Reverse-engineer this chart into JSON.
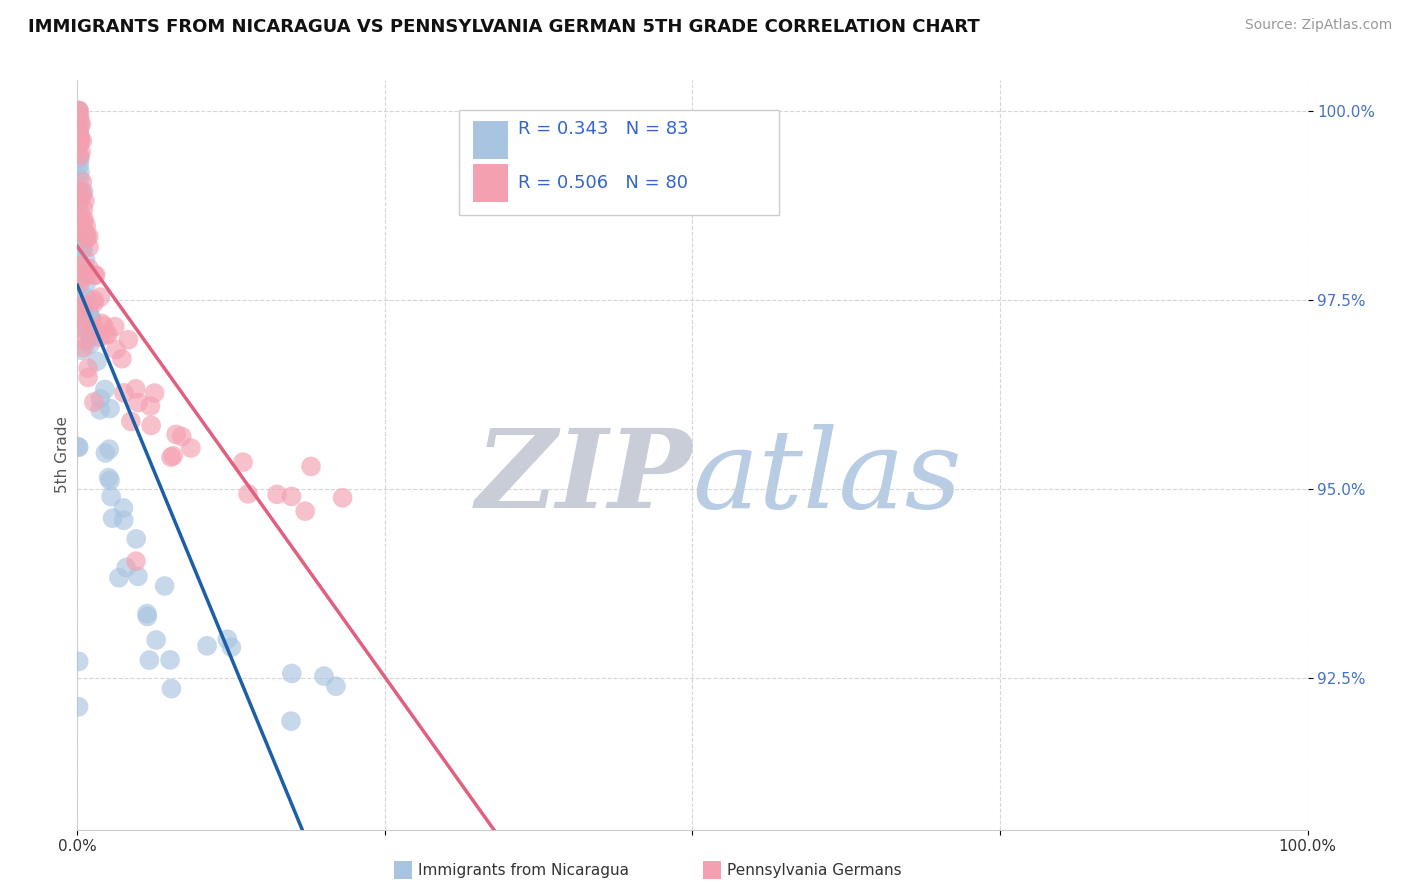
{
  "title": "IMMIGRANTS FROM NICARAGUA VS PENNSYLVANIA GERMAN 5TH GRADE CORRELATION CHART",
  "source": "Source: ZipAtlas.com",
  "ylabel": "5th Grade",
  "xlim": [
    0.0,
    1.0
  ],
  "ylim": [
    0.905,
    1.004
  ],
  "yticks": [
    0.925,
    0.95,
    0.975,
    1.0
  ],
  "ytick_labels": [
    "92.5%",
    "95.0%",
    "97.5%",
    "100.0%"
  ],
  "blue_R": 0.343,
  "blue_N": 83,
  "pink_R": 0.506,
  "pink_N": 80,
  "blue_color": "#a8c4e0",
  "pink_color": "#f4a0b0",
  "blue_line_color": "#1a5fa8",
  "pink_line_color": "#e06080",
  "legend_blue_label": "Immigrants from Nicaragua",
  "legend_pink_label": "Pennsylvania Germans",
  "watermark_zip": "ZIP",
  "watermark_atlas": "atlas",
  "watermark_zip_color": "#c8cdd8",
  "watermark_atlas_color": "#b8cce4",
  "background_color": "#ffffff",
  "blue_x": [
    0.0008,
    0.0009,
    0.001,
    0.001,
    0.0012,
    0.0012,
    0.0014,
    0.0015,
    0.0015,
    0.0016,
    0.0017,
    0.0018,
    0.002,
    0.002,
    0.0022,
    0.0023,
    0.0025,
    0.0026,
    0.0028,
    0.003,
    0.003,
    0.0032,
    0.0035,
    0.0038,
    0.004,
    0.004,
    0.0042,
    0.0045,
    0.005,
    0.005,
    0.0055,
    0.006,
    0.006,
    0.0065,
    0.007,
    0.0075,
    0.008,
    0.0085,
    0.009,
    0.0095,
    0.01,
    0.01,
    0.011,
    0.012,
    0.013,
    0.014,
    0.015,
    0.016,
    0.018,
    0.02,
    0.02,
    0.022,
    0.025,
    0.025,
    0.028,
    0.03,
    0.033,
    0.035,
    0.038,
    0.04,
    0.042,
    0.045,
    0.05,
    0.055,
    0.06,
    0.065,
    0.07,
    0.075,
    0.08,
    0.09,
    0.1,
    0.11,
    0.12,
    0.14,
    0.16,
    0.18,
    0.2,
    0.001,
    0.001,
    0.0008,
    0.001,
    0.002,
    0.003
  ],
  "blue_y": [
    0.999,
    0.998,
    0.998,
    0.997,
    0.997,
    0.996,
    0.995,
    0.995,
    0.994,
    0.994,
    0.993,
    0.993,
    0.992,
    0.992,
    0.991,
    0.99,
    0.99,
    0.989,
    0.988,
    0.988,
    0.987,
    0.987,
    0.986,
    0.985,
    0.984,
    0.984,
    0.983,
    0.983,
    0.982,
    0.981,
    0.98,
    0.979,
    0.978,
    0.977,
    0.976,
    0.975,
    0.975,
    0.974,
    0.973,
    0.972,
    0.972,
    0.971,
    0.97,
    0.969,
    0.968,
    0.967,
    0.966,
    0.965,
    0.963,
    0.962,
    0.96,
    0.958,
    0.957,
    0.955,
    0.953,
    0.952,
    0.95,
    0.948,
    0.946,
    0.945,
    0.943,
    0.942,
    0.94,
    0.938,
    0.936,
    0.934,
    0.932,
    0.93,
    0.929,
    0.928,
    0.927,
    0.926,
    0.925,
    0.924,
    0.923,
    0.922,
    0.921,
    0.93,
    0.92,
    0.95,
    0.96,
    0.97,
    0.965
  ],
  "pink_x": [
    0.0008,
    0.001,
    0.001,
    0.0012,
    0.0015,
    0.0016,
    0.0018,
    0.002,
    0.002,
    0.0022,
    0.0025,
    0.003,
    0.003,
    0.0032,
    0.0035,
    0.004,
    0.004,
    0.0045,
    0.005,
    0.005,
    0.006,
    0.006,
    0.0065,
    0.007,
    0.008,
    0.009,
    0.01,
    0.01,
    0.011,
    0.012,
    0.013,
    0.014,
    0.015,
    0.016,
    0.018,
    0.02,
    0.022,
    0.025,
    0.028,
    0.03,
    0.033,
    0.035,
    0.038,
    0.04,
    0.045,
    0.05,
    0.055,
    0.06,
    0.065,
    0.07,
    0.075,
    0.08,
    0.09,
    0.1,
    0.11,
    0.12,
    0.14,
    0.16,
    0.18,
    0.2,
    0.001,
    0.001,
    0.001,
    0.0015,
    0.0012,
    0.0018,
    0.002,
    0.0025,
    0.003,
    0.004,
    0.005,
    0.006,
    0.007,
    0.008,
    0.01,
    0.012,
    0.015,
    0.04,
    0.05,
    0.23
  ],
  "pink_y": [
    0.999,
    0.999,
    0.998,
    0.998,
    0.997,
    0.997,
    0.996,
    0.996,
    0.995,
    0.995,
    0.994,
    0.994,
    0.993,
    0.993,
    0.992,
    0.991,
    0.99,
    0.99,
    0.989,
    0.988,
    0.988,
    0.987,
    0.986,
    0.985,
    0.984,
    0.983,
    0.982,
    0.981,
    0.98,
    0.979,
    0.978,
    0.977,
    0.976,
    0.975,
    0.974,
    0.973,
    0.972,
    0.971,
    0.97,
    0.969,
    0.968,
    0.967,
    0.966,
    0.965,
    0.964,
    0.963,
    0.962,
    0.961,
    0.96,
    0.959,
    0.958,
    0.957,
    0.956,
    0.955,
    0.954,
    0.953,
    0.952,
    0.951,
    0.95,
    0.949,
    0.984,
    0.983,
    0.982,
    0.981,
    0.98,
    0.979,
    0.975,
    0.974,
    0.973,
    0.972,
    0.971,
    0.97,
    0.969,
    0.968,
    0.966,
    0.964,
    0.963,
    0.961,
    0.94,
    0.948
  ]
}
